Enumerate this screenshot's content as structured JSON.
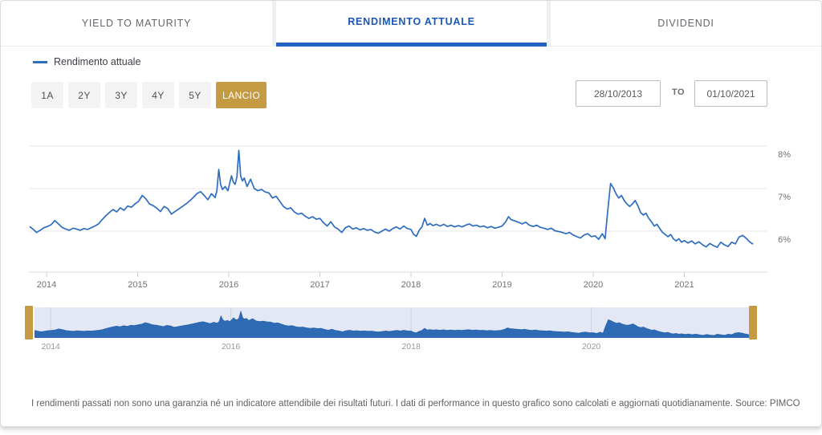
{
  "tabs": [
    {
      "label": "YIELD TO MATURITY",
      "active": false
    },
    {
      "label": "RENDIMENTO ATTUALE",
      "active": true
    },
    {
      "label": "DIVIDENDI",
      "active": false
    }
  ],
  "legend": {
    "label": "Rendimento attuale",
    "color": "#2e6dc0"
  },
  "range_buttons": [
    {
      "label": "1A",
      "active": false
    },
    {
      "label": "2Y",
      "active": false
    },
    {
      "label": "3Y",
      "active": false
    },
    {
      "label": "4Y",
      "active": false
    },
    {
      "label": "5Y",
      "active": false
    },
    {
      "label": "LANCIO",
      "active": true
    }
  ],
  "date_range": {
    "from": "28/10/2013",
    "separator": "TO",
    "to": "01/10/2021"
  },
  "colors": {
    "accent_blue": "#2463c2",
    "line_blue": "#2e6dc0",
    "gold": "#c49b42",
    "navigator_bg": "#e3e8f4",
    "navigator_fill": "#2f6bb4",
    "navigator_stroke": "#2a66b0",
    "grid": "#e7e7e7",
    "axis": "#d9d9d9",
    "tick": "#cccccc",
    "axis_text": "#6f7275",
    "nav_text": "#97999c"
  },
  "footer": {
    "disclaimer": "I rendimenti passati non sono una garanzia né un indicatore attendibile dei risultati futuri. I dati di performance in questo grafico sono calcolati e aggiornati quotidianamente. Source: PIMCO"
  },
  "chart_data": {
    "type": "line",
    "title": "Rendimento attuale (%)",
    "xlabel": "",
    "ylabel": "",
    "x_unit": "year",
    "y_unit": "percent",
    "xlim": [
      2013.8,
      2021.92
    ],
    "ylim": [
      5.05,
      8.25
    ],
    "grid": "horizontal",
    "legend_position": "top-left",
    "x_ticks": [
      2014,
      2015,
      2016,
      2017,
      2018,
      2019,
      2020,
      2021
    ],
    "y_ticks": [
      {
        "value": 6,
        "label": "6%"
      },
      {
        "value": 7,
        "label": "7%"
      },
      {
        "value": 8,
        "label": "8%"
      }
    ],
    "navigator": {
      "x_ticks": [
        2014,
        2016,
        2018,
        2020
      ],
      "range": [
        2013.82,
        2021.75
      ]
    },
    "series": [
      {
        "name": "Rendimento attuale",
        "color": "#2e6dc0",
        "points": [
          [
            2013.82,
            6.1
          ],
          [
            2013.86,
            6.03
          ],
          [
            2013.89,
            5.97
          ],
          [
            2013.93,
            6.02
          ],
          [
            2013.97,
            6.08
          ],
          [
            2014.01,
            6.11
          ],
          [
            2014.05,
            6.15
          ],
          [
            2014.09,
            6.25
          ],
          [
            2014.13,
            6.17
          ],
          [
            2014.17,
            6.09
          ],
          [
            2014.21,
            6.05
          ],
          [
            2014.25,
            6.02
          ],
          [
            2014.29,
            6.07
          ],
          [
            2014.33,
            6.05
          ],
          [
            2014.37,
            6.02
          ],
          [
            2014.41,
            6.06
          ],
          [
            2014.45,
            6.04
          ],
          [
            2014.49,
            6.08
          ],
          [
            2014.53,
            6.12
          ],
          [
            2014.57,
            6.17
          ],
          [
            2014.61,
            6.27
          ],
          [
            2014.65,
            6.36
          ],
          [
            2014.69,
            6.44
          ],
          [
            2014.73,
            6.51
          ],
          [
            2014.77,
            6.45
          ],
          [
            2014.81,
            6.55
          ],
          [
            2014.85,
            6.49
          ],
          [
            2014.89,
            6.59
          ],
          [
            2014.93,
            6.56
          ],
          [
            2014.97,
            6.64
          ],
          [
            2015.01,
            6.7
          ],
          [
            2015.05,
            6.84
          ],
          [
            2015.09,
            6.76
          ],
          [
            2015.13,
            6.64
          ],
          [
            2015.17,
            6.6
          ],
          [
            2015.21,
            6.54
          ],
          [
            2015.25,
            6.46
          ],
          [
            2015.29,
            6.58
          ],
          [
            2015.33,
            6.53
          ],
          [
            2015.37,
            6.4
          ],
          [
            2015.41,
            6.46
          ],
          [
            2015.45,
            6.52
          ],
          [
            2015.49,
            6.58
          ],
          [
            2015.53,
            6.64
          ],
          [
            2015.57,
            6.71
          ],
          [
            2015.61,
            6.79
          ],
          [
            2015.65,
            6.88
          ],
          [
            2015.69,
            6.93
          ],
          [
            2015.73,
            6.84
          ],
          [
            2015.77,
            6.74
          ],
          [
            2015.81,
            6.88
          ],
          [
            2015.85,
            6.79
          ],
          [
            2015.87,
            6.95
          ],
          [
            2015.89,
            7.45
          ],
          [
            2015.91,
            7.1
          ],
          [
            2015.93,
            6.98
          ],
          [
            2015.96,
            7.05
          ],
          [
            2015.99,
            6.95
          ],
          [
            2016.01,
            7.12
          ],
          [
            2016.03,
            7.3
          ],
          [
            2016.05,
            7.15
          ],
          [
            2016.07,
            7.1
          ],
          [
            2016.09,
            7.28
          ],
          [
            2016.11,
            7.9
          ],
          [
            2016.13,
            7.3
          ],
          [
            2016.15,
            7.18
          ],
          [
            2016.17,
            7.25
          ],
          [
            2016.2,
            7.05
          ],
          [
            2016.24,
            7.22
          ],
          [
            2016.28,
            7.0
          ],
          [
            2016.32,
            6.95
          ],
          [
            2016.36,
            6.98
          ],
          [
            2016.4,
            6.92
          ],
          [
            2016.44,
            6.9
          ],
          [
            2016.48,
            6.78
          ],
          [
            2016.52,
            6.82
          ],
          [
            2016.56,
            6.7
          ],
          [
            2016.6,
            6.58
          ],
          [
            2016.64,
            6.52
          ],
          [
            2016.68,
            6.55
          ],
          [
            2016.72,
            6.45
          ],
          [
            2016.76,
            6.4
          ],
          [
            2016.8,
            6.42
          ],
          [
            2016.84,
            6.35
          ],
          [
            2016.88,
            6.3
          ],
          [
            2016.92,
            6.34
          ],
          [
            2016.96,
            6.28
          ],
          [
            2017.0,
            6.3
          ],
          [
            2017.04,
            6.2
          ],
          [
            2017.08,
            6.12
          ],
          [
            2017.12,
            6.22
          ],
          [
            2017.16,
            6.1
          ],
          [
            2017.2,
            6.05
          ],
          [
            2017.24,
            5.97
          ],
          [
            2017.28,
            6.08
          ],
          [
            2017.32,
            6.12
          ],
          [
            2017.36,
            6.05
          ],
          [
            2017.4,
            6.08
          ],
          [
            2017.44,
            6.03
          ],
          [
            2017.48,
            6.06
          ],
          [
            2017.52,
            6.02
          ],
          [
            2017.56,
            6.04
          ],
          [
            2017.6,
            5.98
          ],
          [
            2017.64,
            5.95
          ],
          [
            2017.68,
            6.0
          ],
          [
            2017.72,
            6.05
          ],
          [
            2017.76,
            6.0
          ],
          [
            2017.8,
            6.06
          ],
          [
            2017.84,
            6.1
          ],
          [
            2017.88,
            6.05
          ],
          [
            2017.92,
            6.12
          ],
          [
            2017.96,
            6.06
          ],
          [
            2018.0,
            6.04
          ],
          [
            2018.03,
            5.92
          ],
          [
            2018.06,
            5.88
          ],
          [
            2018.09,
            6.02
          ],
          [
            2018.12,
            6.1
          ],
          [
            2018.15,
            6.3
          ],
          [
            2018.18,
            6.14
          ],
          [
            2018.21,
            6.18
          ],
          [
            2018.24,
            6.13
          ],
          [
            2018.28,
            6.16
          ],
          [
            2018.32,
            6.12
          ],
          [
            2018.36,
            6.16
          ],
          [
            2018.4,
            6.11
          ],
          [
            2018.44,
            6.14
          ],
          [
            2018.48,
            6.1
          ],
          [
            2018.52,
            6.13
          ],
          [
            2018.56,
            6.1
          ],
          [
            2018.6,
            6.14
          ],
          [
            2018.64,
            6.17
          ],
          [
            2018.68,
            6.12
          ],
          [
            2018.72,
            6.14
          ],
          [
            2018.76,
            6.1
          ],
          [
            2018.8,
            6.12
          ],
          [
            2018.84,
            6.08
          ],
          [
            2018.88,
            6.11
          ],
          [
            2018.92,
            6.07
          ],
          [
            2018.96,
            6.09
          ],
          [
            2019.0,
            6.12
          ],
          [
            2019.04,
            6.22
          ],
          [
            2019.07,
            6.34
          ],
          [
            2019.1,
            6.27
          ],
          [
            2019.14,
            6.24
          ],
          [
            2019.18,
            6.21
          ],
          [
            2019.22,
            6.17
          ],
          [
            2019.26,
            6.21
          ],
          [
            2019.3,
            6.14
          ],
          [
            2019.34,
            6.11
          ],
          [
            2019.38,
            6.14
          ],
          [
            2019.42,
            6.09
          ],
          [
            2019.46,
            6.07
          ],
          [
            2019.5,
            6.04
          ],
          [
            2019.54,
            6.07
          ],
          [
            2019.58,
            6.01
          ],
          [
            2019.62,
            5.99
          ],
          [
            2019.66,
            5.97
          ],
          [
            2019.7,
            5.94
          ],
          [
            2019.74,
            5.97
          ],
          [
            2019.78,
            5.91
          ],
          [
            2019.82,
            5.87
          ],
          [
            2019.86,
            5.84
          ],
          [
            2019.9,
            5.91
          ],
          [
            2019.94,
            5.94
          ],
          [
            2019.98,
            5.87
          ],
          [
            2020.02,
            5.89
          ],
          [
            2020.06,
            5.81
          ],
          [
            2020.1,
            5.94
          ],
          [
            2020.13,
            5.82
          ],
          [
            2020.16,
            6.5
          ],
          [
            2020.19,
            7.12
          ],
          [
            2020.22,
            7.02
          ],
          [
            2020.25,
            6.88
          ],
          [
            2020.28,
            6.78
          ],
          [
            2020.31,
            6.84
          ],
          [
            2020.34,
            6.72
          ],
          [
            2020.37,
            6.64
          ],
          [
            2020.4,
            6.58
          ],
          [
            2020.43,
            6.64
          ],
          [
            2020.46,
            6.72
          ],
          [
            2020.49,
            6.6
          ],
          [
            2020.52,
            6.44
          ],
          [
            2020.55,
            6.38
          ],
          [
            2020.58,
            6.42
          ],
          [
            2020.61,
            6.3
          ],
          [
            2020.64,
            6.22
          ],
          [
            2020.67,
            6.12
          ],
          [
            2020.7,
            6.16
          ],
          [
            2020.73,
            6.06
          ],
          [
            2020.76,
            5.97
          ],
          [
            2020.79,
            5.92
          ],
          [
            2020.82,
            5.87
          ],
          [
            2020.85,
            5.92
          ],
          [
            2020.88,
            5.82
          ],
          [
            2020.91,
            5.77
          ],
          [
            2020.94,
            5.82
          ],
          [
            2020.97,
            5.74
          ],
          [
            2021.0,
            5.78
          ],
          [
            2021.04,
            5.72
          ],
          [
            2021.08,
            5.77
          ],
          [
            2021.12,
            5.7
          ],
          [
            2021.16,
            5.75
          ],
          [
            2021.2,
            5.68
          ],
          [
            2021.24,
            5.63
          ],
          [
            2021.28,
            5.71
          ],
          [
            2021.32,
            5.66
          ],
          [
            2021.36,
            5.62
          ],
          [
            2021.4,
            5.74
          ],
          [
            2021.44,
            5.68
          ],
          [
            2021.48,
            5.64
          ],
          [
            2021.52,
            5.74
          ],
          [
            2021.56,
            5.7
          ],
          [
            2021.6,
            5.86
          ],
          [
            2021.64,
            5.9
          ],
          [
            2021.68,
            5.83
          ],
          [
            2021.71,
            5.76
          ],
          [
            2021.75,
            5.7
          ]
        ]
      }
    ]
  }
}
